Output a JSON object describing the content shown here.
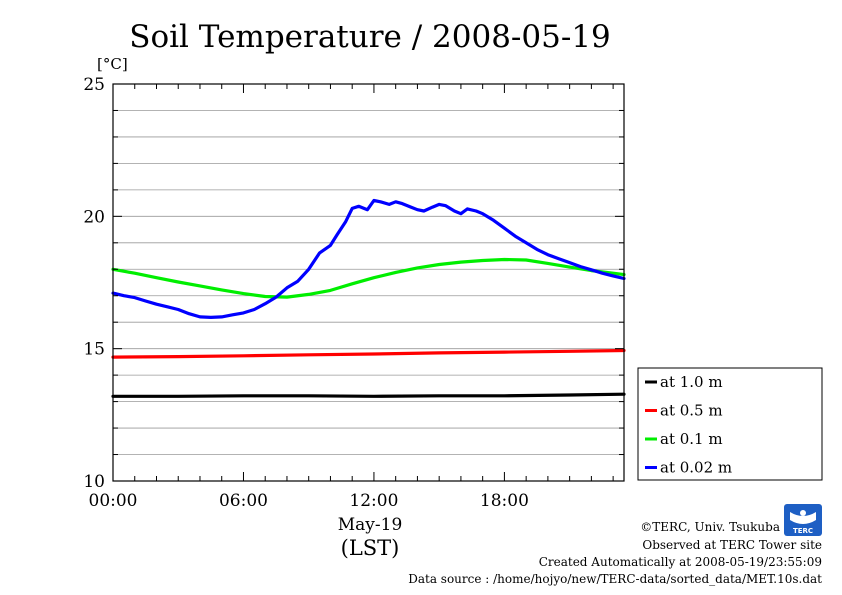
{
  "chart_data": {
    "type": "line",
    "title": "Soil Temperature / 2008-05-19",
    "ylabel": "[°C]",
    "xlabel": "May-19",
    "xlabel2": "(LST)",
    "xlim": [
      0,
      23.5
    ],
    "ylim": [
      10,
      25
    ],
    "yticks": [
      10,
      15,
      20,
      25
    ],
    "yminor_step": 1,
    "xticks": [
      {
        "value": 0,
        "label": "00:00"
      },
      {
        "value": 6,
        "label": "06:00"
      },
      {
        "value": 12,
        "label": "12:00"
      },
      {
        "value": 18,
        "label": "18:00"
      }
    ],
    "xminor_step": 1,
    "grid": true,
    "legend_position": "right-bottom-outside",
    "series": [
      {
        "name": "at 1.0 m",
        "color": "#000000",
        "x": [
          0,
          3,
          6,
          9,
          12,
          15,
          18,
          21,
          23.5
        ],
        "y": [
          13.2,
          13.2,
          13.22,
          13.22,
          13.2,
          13.22,
          13.22,
          13.25,
          13.28
        ]
      },
      {
        "name": "at 0.5 m",
        "color": "#ff0000",
        "x": [
          0,
          3,
          6,
          9,
          12,
          15,
          18,
          21,
          23.5
        ],
        "y": [
          14.68,
          14.7,
          14.73,
          14.77,
          14.8,
          14.84,
          14.87,
          14.9,
          14.93
        ]
      },
      {
        "name": "at 0.1 m",
        "color": "#00ee00",
        "x": [
          0,
          1,
          2,
          3,
          4,
          5,
          6,
          7,
          8,
          9,
          10,
          11,
          12,
          13,
          14,
          15,
          16,
          17,
          18,
          19,
          20,
          21,
          22,
          23,
          23.5
        ],
        "y": [
          18.0,
          17.85,
          17.68,
          17.52,
          17.37,
          17.22,
          17.08,
          16.97,
          16.95,
          17.05,
          17.2,
          17.45,
          17.68,
          17.88,
          18.05,
          18.18,
          18.27,
          18.33,
          18.37,
          18.35,
          18.22,
          18.08,
          17.95,
          17.85,
          17.8
        ]
      },
      {
        "name": "at 0.02 m",
        "color": "#0000ff",
        "x": [
          0,
          0.5,
          1,
          1.5,
          2,
          2.5,
          3,
          3.5,
          4,
          4.5,
          5,
          5.5,
          6,
          6.5,
          7,
          7.5,
          8,
          8.5,
          9,
          9.5,
          10,
          10.3,
          10.7,
          11,
          11.3,
          11.7,
          12,
          12.3,
          12.7,
          13,
          13.3,
          13.7,
          14,
          14.3,
          14.7,
          15,
          15.3,
          15.7,
          16,
          16.3,
          16.7,
          17,
          17.5,
          18,
          18.5,
          19,
          19.5,
          20,
          20.5,
          21,
          21.5,
          22,
          22.5,
          23,
          23.5
        ],
        "y": [
          17.1,
          17.0,
          16.93,
          16.8,
          16.68,
          16.58,
          16.48,
          16.32,
          16.2,
          16.18,
          16.2,
          16.28,
          16.35,
          16.48,
          16.7,
          16.95,
          17.3,
          17.55,
          18.0,
          18.62,
          18.9,
          19.3,
          19.8,
          20.3,
          20.38,
          20.25,
          20.6,
          20.55,
          20.45,
          20.55,
          20.48,
          20.35,
          20.25,
          20.2,
          20.35,
          20.45,
          20.4,
          20.2,
          20.1,
          20.28,
          20.2,
          20.1,
          19.85,
          19.55,
          19.25,
          19.0,
          18.75,
          18.55,
          18.4,
          18.25,
          18.1,
          17.98,
          17.85,
          17.75,
          17.65
        ]
      }
    ]
  },
  "credits": {
    "copyright": "©TERC, Univ. Tsukuba",
    "observed": "Observed at TERC Tower site",
    "created": "Created Automatically at 2008-05-19/23:55:09",
    "source": "Data source : /home/hojyo/new/TERC-data/sorted_data/MET.10s.dat",
    "logo_text": "TERC"
  }
}
